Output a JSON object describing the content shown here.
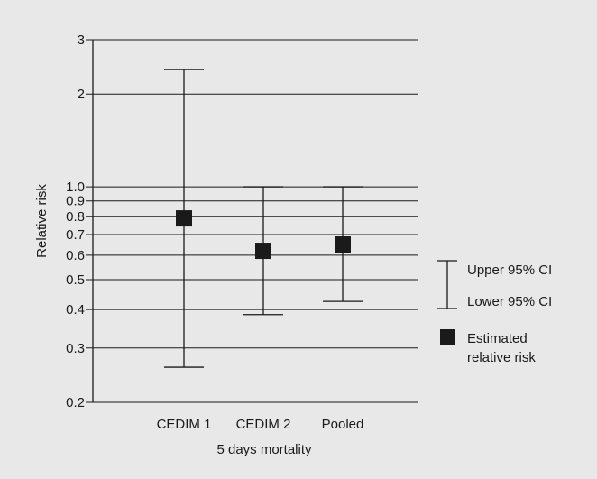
{
  "chart_data": {
    "type": "errorbar",
    "y_scale": "log",
    "ylim": [
      0.2,
      3
    ],
    "y_ticks": [
      {
        "value": 3,
        "label": "3"
      },
      {
        "value": 2,
        "label": "2"
      },
      {
        "value": 1.0,
        "label": "1.0"
      },
      {
        "value": 0.9,
        "label": "0.9"
      },
      {
        "value": 0.8,
        "label": "0.8"
      },
      {
        "value": 0.7,
        "label": "0.7"
      },
      {
        "value": 0.6,
        "label": "0.6"
      },
      {
        "value": 0.5,
        "label": "0.5"
      },
      {
        "value": 0.4,
        "label": "0.4"
      },
      {
        "value": 0.3,
        "label": "0.3"
      },
      {
        "value": 0.2,
        "label": "0.2"
      }
    ],
    "grid": "horizontal at y ticks",
    "ylabel": "Relative risk",
    "xlabel": "5 days mortality",
    "categories": [
      "CEDIM 1",
      "CEDIM 2",
      "Pooled"
    ],
    "estimate": [
      0.79,
      0.62,
      0.65
    ],
    "lower_95_ci": [
      0.26,
      0.385,
      0.425
    ],
    "upper_95_ci": [
      2.4,
      1.0,
      1.0
    ],
    "legend_placement": "right",
    "legend": {
      "upper_label": "Upper 95% CI",
      "lower_label": "Lower 95% CI",
      "estimate_label_line1": "Estimated",
      "estimate_label_line2": "relative risk"
    },
    "colors": {
      "background": "#e8e8e8",
      "ink": "#1a1a1a"
    }
  }
}
